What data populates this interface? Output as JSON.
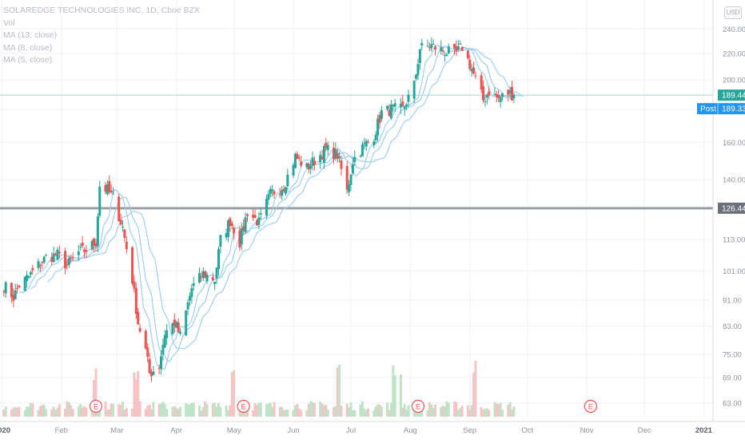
{
  "legend": {
    "title": "SOLAREDGE TECHNOLOGIES INC, 1D, Cboe BZX",
    "vol": "Vol",
    "ma1": "MA (13, close)",
    "ma2": "MA (8, close)",
    "ma3": "MA (5, close)"
  },
  "currency": "USD",
  "colors": {
    "up": "#26a69a",
    "down": "#ef5350",
    "ma": "#9fcfee",
    "last_price": "#26a69a",
    "post": "#2196f3",
    "hline": "#9a9ea6",
    "earnings": "#ef5350",
    "vol_up": "#bfe3c6",
    "vol_down": "#f5c4c4"
  },
  "chart_data": {
    "type": "candlestick",
    "y_scale": "log",
    "y_ticks": [
      63,
      69,
      75,
      83,
      91,
      101,
      113,
      126,
      140,
      160,
      180,
      200,
      220,
      240
    ],
    "y_range": [
      60,
      250
    ],
    "x_labels": [
      "2020",
      "Feb",
      "Mar",
      "Apr",
      "May",
      "Jun",
      "Jul",
      "Aug",
      "Sep",
      "Oct",
      "Nov",
      "Dec",
      "2021"
    ],
    "last_price_label": "189.44",
    "post_label": "Post",
    "post_value": "189.33",
    "hline_label": "126.44",
    "earnings_marker": "E",
    "earnings_dates": [
      "2020-02-19",
      "2020-05-06",
      "2020-08-05",
      "2020-11-03"
    ],
    "price_anchors": [
      [
        "2020-01-02",
        96
      ],
      [
        "2020-01-07",
        92
      ],
      [
        "2020-01-10",
        96
      ],
      [
        "2020-01-15",
        99
      ],
      [
        "2020-01-21",
        104
      ],
      [
        "2020-01-24",
        106
      ],
      [
        "2020-01-30",
        107
      ],
      [
        "2020-02-04",
        103
      ],
      [
        "2020-02-10",
        108
      ],
      [
        "2020-02-14",
        109
      ],
      [
        "2020-02-19",
        112
      ],
      [
        "2020-02-21",
        137
      ],
      [
        "2020-02-25",
        135
      ],
      [
        "2020-02-28",
        131
      ],
      [
        "2020-03-04",
        118
      ],
      [
        "2020-03-09",
        98
      ],
      [
        "2020-03-12",
        84
      ],
      [
        "2020-03-16",
        76
      ],
      [
        "2020-03-18",
        70
      ],
      [
        "2020-03-23",
        72
      ],
      [
        "2020-03-26",
        81
      ],
      [
        "2020-03-31",
        84
      ],
      [
        "2020-04-03",
        80
      ],
      [
        "2020-04-09",
        95
      ],
      [
        "2020-04-15",
        100
      ],
      [
        "2020-04-21",
        98
      ],
      [
        "2020-04-24",
        113
      ],
      [
        "2020-04-29",
        121
      ],
      [
        "2020-05-04",
        112
      ],
      [
        "2020-05-08",
        125
      ],
      [
        "2020-05-14",
        120
      ],
      [
        "2020-05-20",
        133
      ],
      [
        "2020-05-27",
        137
      ],
      [
        "2020-06-02",
        152
      ],
      [
        "2020-06-08",
        146
      ],
      [
        "2020-06-12",
        150
      ],
      [
        "2020-06-18",
        156
      ],
      [
        "2020-06-24",
        153
      ],
      [
        "2020-06-29",
        134
      ],
      [
        "2020-07-02",
        150
      ],
      [
        "2020-07-07",
        157
      ],
      [
        "2020-07-13",
        164
      ],
      [
        "2020-07-17",
        178
      ],
      [
        "2020-07-22",
        180
      ],
      [
        "2020-07-28",
        180
      ],
      [
        "2020-08-03",
        196
      ],
      [
        "2020-08-06",
        224
      ],
      [
        "2020-08-12",
        226
      ],
      [
        "2020-08-18",
        222
      ],
      [
        "2020-08-24",
        219
      ],
      [
        "2020-08-28",
        225
      ],
      [
        "2020-09-02",
        208
      ],
      [
        "2020-09-08",
        186
      ],
      [
        "2020-09-11",
        192
      ],
      [
        "2020-09-16",
        187
      ],
      [
        "2020-09-21",
        191
      ],
      [
        "2020-09-24",
        189.44
      ]
    ]
  }
}
